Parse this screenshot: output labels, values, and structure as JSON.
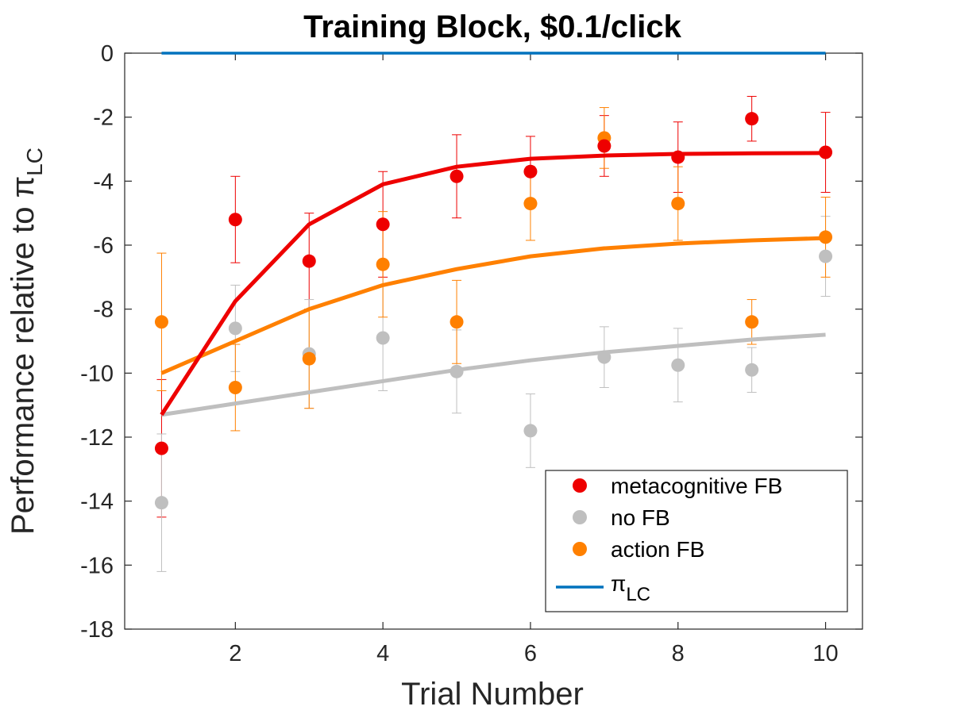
{
  "chart_data": {
    "type": "scatter",
    "title": "Training Block, $0.1/click",
    "xlabel": "Trial Number",
    "ylabel_main": "Performance relative to ",
    "ylabel_symbol": "π",
    "ylabel_subscript": "LC",
    "xlim": [
      0.5,
      10.5
    ],
    "ylim": [
      -18,
      0
    ],
    "xticks": [
      2,
      4,
      6,
      8,
      10
    ],
    "yticks": [
      0,
      -2,
      -4,
      -6,
      -8,
      -10,
      -12,
      -14,
      -16,
      -18
    ],
    "grid": false,
    "legend_position": "bottom-right",
    "series": [
      {
        "name": "metacognitive FB",
        "color": "#ee0000",
        "x": [
          1,
          2,
          3,
          4,
          5,
          6,
          7,
          8,
          9,
          10
        ],
        "y": [
          -12.35,
          -5.2,
          -6.5,
          -5.35,
          -3.85,
          -3.7,
          -2.9,
          -3.25,
          -2.05,
          -3.1
        ],
        "err": [
          2.15,
          1.35,
          1.5,
          1.65,
          1.3,
          1.1,
          0.95,
          1.1,
          0.7,
          1.25
        ],
        "fit": [
          -11.3,
          -7.75,
          -5.35,
          -4.1,
          -3.55,
          -3.3,
          -3.2,
          -3.15,
          -3.13,
          -3.12
        ]
      },
      {
        "name": "no FB",
        "color": "#bfbfbf",
        "x": [
          1,
          2,
          3,
          4,
          5,
          6,
          7,
          8,
          9,
          10
        ],
        "y": [
          -14.05,
          -8.6,
          -9.4,
          -8.9,
          -9.95,
          -11.8,
          -9.5,
          -9.75,
          -9.9,
          -6.35
        ],
        "err": [
          2.15,
          1.35,
          1.7,
          1.65,
          1.3,
          1.15,
          0.95,
          1.15,
          0.7,
          1.25
        ],
        "fit": [
          -11.3,
          -10.95,
          -10.6,
          -10.25,
          -9.9,
          -9.6,
          -9.35,
          -9.15,
          -8.95,
          -8.8
        ]
      },
      {
        "name": "action FB",
        "color": "#ff8000",
        "x": [
          1,
          2,
          3,
          4,
          5,
          6,
          7,
          8,
          9,
          10
        ],
        "y": [
          -8.4,
          -10.45,
          -9.55,
          -6.6,
          -8.4,
          -4.7,
          -2.65,
          -4.7,
          -8.4,
          -5.75
        ],
        "err": [
          2.15,
          1.35,
          1.55,
          1.65,
          1.3,
          1.15,
          0.95,
          1.15,
          0.7,
          1.25
        ],
        "fit": [
          -10.0,
          -9.0,
          -8.0,
          -7.25,
          -6.75,
          -6.35,
          -6.1,
          -5.95,
          -5.85,
          -5.78
        ]
      }
    ],
    "reference_line": {
      "name": "π",
      "name_subscript": "LC",
      "color": "#0072bd",
      "x": [
        1,
        10
      ],
      "y": [
        0,
        0
      ]
    }
  }
}
